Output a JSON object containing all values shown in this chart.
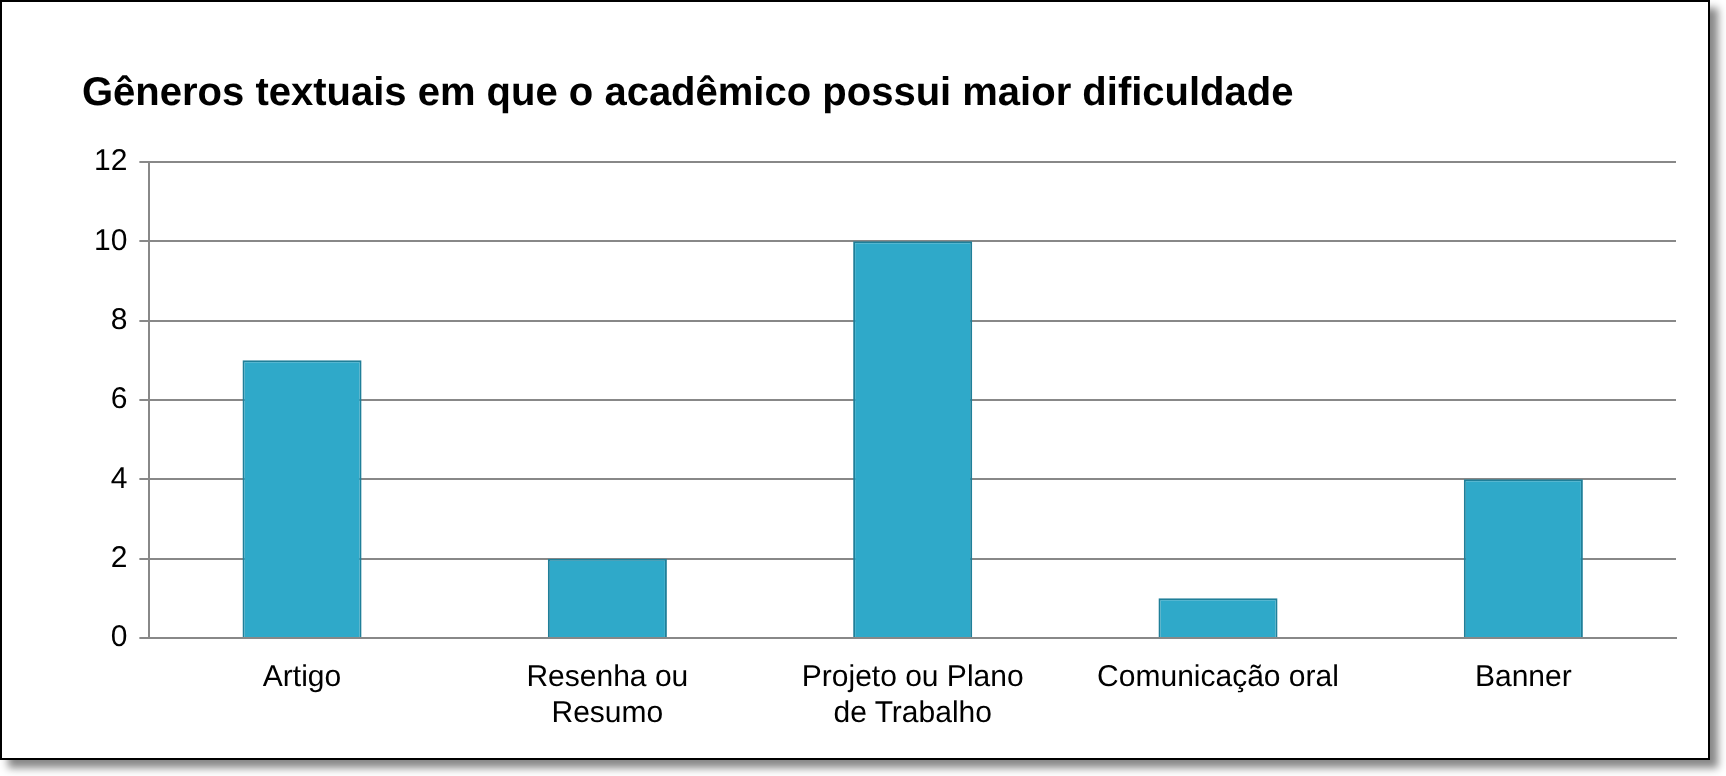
{
  "chart_data": {
    "type": "bar",
    "title": "Gêneros textuais em que o acadêmico possui maior dificuldade",
    "categories": [
      "Artigo",
      "Resenha ou Resumo",
      "Projeto ou Plano de Trabalho",
      "Comunicação oral",
      "Banner"
    ],
    "values": [
      7,
      2,
      10,
      1,
      4
    ],
    "color": "#2fa9c9",
    "ylim": [
      0,
      12
    ],
    "yticks": [
      0,
      2,
      4,
      6,
      8,
      10,
      12
    ],
    "grid": "y",
    "legend": false
  }
}
